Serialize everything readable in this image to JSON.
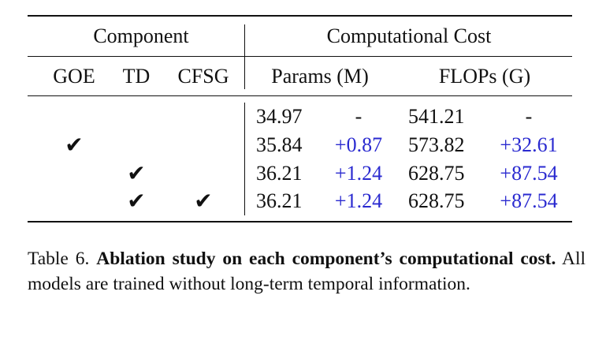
{
  "table": {
    "header_group": {
      "component": "Component",
      "cost": "Computational Cost"
    },
    "subheaders": [
      "GOE",
      "TD",
      "CFSG",
      "Params (M)",
      "FLOPs (G)"
    ],
    "rows": [
      {
        "goe": "",
        "td": "",
        "cfsg": "",
        "params": "34.97",
        "params_delta": "-",
        "flops": "541.21",
        "flops_delta": "-"
      },
      {
        "goe": "✔",
        "td": "",
        "cfsg": "",
        "params": "35.84",
        "params_delta": "+0.87",
        "flops": "573.82",
        "flops_delta": "+32.61"
      },
      {
        "goe": "",
        "td": "✔",
        "cfsg": "",
        "params": "36.21",
        "params_delta": "+1.24",
        "flops": "628.75",
        "flops_delta": "+87.54"
      },
      {
        "goe": "",
        "td": "✔",
        "cfsg": "✔",
        "params": "36.21",
        "params_delta": "+1.24",
        "flops": "628.75",
        "flops_delta": "+87.54"
      }
    ],
    "delta_color": "#2a2ad0"
  },
  "caption": {
    "label": "Table 6.",
    "bold": "Ablation study on each component’s computational cost.",
    "text": "All models are trained without long-term temporal information."
  }
}
